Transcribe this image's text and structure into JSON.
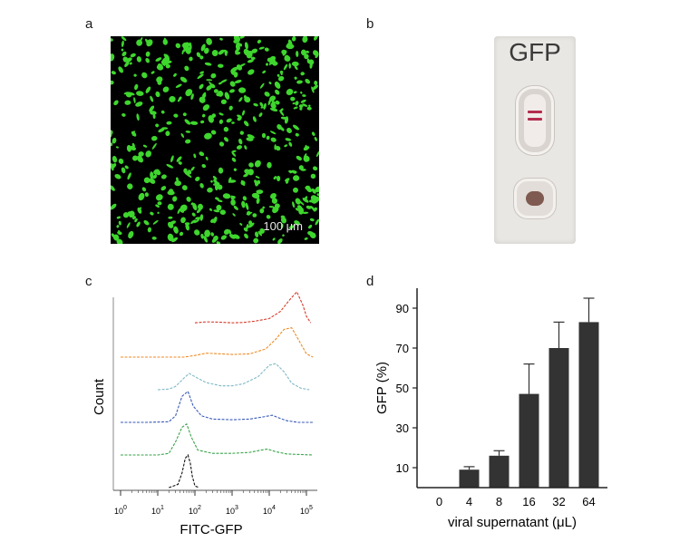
{
  "panels": {
    "a": {
      "letter": "a",
      "scale_bar": "100 μm"
    },
    "b": {
      "letter": "b",
      "strip_label": "GFP"
    },
    "c": {
      "letter": "c"
    },
    "d": {
      "letter": "d"
    }
  },
  "colors": {
    "fluorescence": "#3fd62e",
    "test_line": "#b42c4e",
    "bar": "#333333",
    "histograms": [
      "#d63b2a",
      "#f08a24",
      "#7fb8c6",
      "#3a5bb8",
      "#3aa34a",
      "#111111"
    ]
  },
  "chart_data": [
    {
      "type": "line",
      "panel": "c",
      "xlabel": "FITC-GFP",
      "ylabel": "Count",
      "x_scale": "log",
      "x_ticks": [
        {
          "base": "10",
          "exp": "0"
        },
        {
          "base": "10",
          "exp": "1"
        },
        {
          "base": "10",
          "exp": "2"
        },
        {
          "base": "10",
          "exp": "3"
        },
        {
          "base": "10",
          "exp": "4"
        },
        {
          "base": "10",
          "exp": "5"
        }
      ],
      "series": [
        {
          "color": "#d63b2a",
          "x": [
            100,
            200,
            500,
            1000,
            2000,
            4000,
            10000,
            20000,
            35000,
            55000,
            80000,
            100000,
            130000
          ],
          "y": [
            0.05,
            0.08,
            0.07,
            0.05,
            0.06,
            0.1,
            0.18,
            0.4,
            0.75,
            1.0,
            0.6,
            0.25,
            0.05
          ]
        },
        {
          "color": "#f08a24",
          "x": [
            1,
            2,
            5,
            10,
            20,
            50,
            100,
            200,
            500,
            1000,
            3000,
            8000,
            15000,
            25000,
            40000,
            60000,
            100000,
            150000
          ],
          "y": [
            0,
            0,
            0,
            0,
            0,
            0,
            0.05,
            0.12,
            0.1,
            0.08,
            0.1,
            0.25,
            0.55,
            0.85,
            0.9,
            0.55,
            0.1,
            0
          ]
        },
        {
          "color": "#7fb8c6",
          "x": [
            10,
            20,
            30,
            50,
            70,
            100,
            200,
            500,
            1000,
            2000,
            5000,
            10000,
            15000,
            25000,
            40000,
            70000,
            120000
          ],
          "y": [
            0,
            0.02,
            0.1,
            0.35,
            0.5,
            0.4,
            0.22,
            0.12,
            0.12,
            0.18,
            0.4,
            0.75,
            0.8,
            0.55,
            0.2,
            0.05,
            0
          ]
        },
        {
          "color": "#3a5bb8",
          "x": [
            1,
            5,
            20,
            30,
            45,
            65,
            90,
            150,
            300,
            1000,
            3000,
            8000,
            12000,
            20000,
            30000,
            60000,
            150000
          ],
          "y": [
            0,
            0,
            0.02,
            0.2,
            0.8,
            0.95,
            0.5,
            0.2,
            0.1,
            0.08,
            0.1,
            0.18,
            0.22,
            0.12,
            0.05,
            0,
            0
          ]
        },
        {
          "color": "#3aa34a",
          "x": [
            1,
            10,
            20,
            30,
            45,
            60,
            80,
            120,
            300,
            1000,
            3000,
            6000,
            9000,
            15000,
            30000,
            150000
          ],
          "y": [
            0,
            0,
            0.05,
            0.4,
            0.85,
            0.95,
            0.55,
            0.15,
            0.05,
            0.05,
            0.08,
            0.15,
            0.18,
            0.1,
            0.03,
            0
          ]
        },
        {
          "color": "#111111",
          "x": [
            20,
            35,
            45,
            55,
            65,
            75,
            85,
            100,
            130
          ],
          "y": [
            0,
            0.1,
            0.45,
            0.9,
            1.0,
            0.75,
            0.35,
            0.05,
            0
          ]
        }
      ]
    },
    {
      "type": "bar",
      "panel": "d",
      "categories": [
        "0",
        "4",
        "8",
        "16",
        "32",
        "64"
      ],
      "values": [
        0,
        9,
        16,
        47,
        70,
        83
      ],
      "errors": [
        0,
        1.5,
        2.5,
        15,
        13,
        12
      ],
      "xlabel": "viral supernatant (μL)",
      "ylabel": "GFP (%)",
      "ylim": [
        0,
        100
      ],
      "yticks": [
        10,
        30,
        50,
        70,
        90
      ]
    }
  ]
}
